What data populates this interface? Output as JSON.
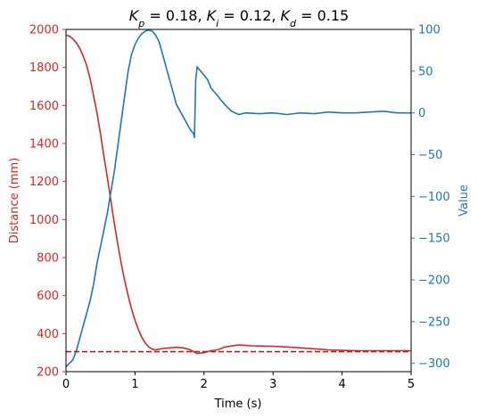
{
  "colors": {
    "distance": "#d62728",
    "value": "#1f77b4",
    "setpoint": "#b22222",
    "axis": "#000000"
  },
  "chart_data": {
    "type": "line",
    "title": {
      "segments": [
        {
          "text": "K",
          "italic": true
        },
        {
          "text": "p",
          "sub": true,
          "italic": true
        },
        {
          "text": " = 0.18, "
        },
        {
          "text": "K",
          "italic": true
        },
        {
          "text": "i",
          "sub": true,
          "italic": true
        },
        {
          "text": " = 0.12, "
        },
        {
          "text": "K",
          "italic": true
        },
        {
          "text": "d",
          "sub": true,
          "italic": true
        },
        {
          "text": " = 0.15"
        }
      ]
    },
    "xlabel": "Time (s)",
    "ylabel_left": "Distance (mm)",
    "ylabel_right": "Value",
    "xlim": [
      0,
      5
    ],
    "ylim_left": [
      200,
      2000
    ],
    "ylim_right": [
      -310,
      100
    ],
    "xticks": [
      "0",
      "1",
      "2",
      "3",
      "4",
      "5"
    ],
    "yticks_left": [
      "200",
      "400",
      "600",
      "800",
      "1000",
      "1200",
      "1400",
      "1600",
      "1800",
      "2000"
    ],
    "yticks_right": [
      "100",
      "50",
      "0",
      "−50",
      "−100",
      "−150",
      "−200",
      "−250",
      "−300"
    ],
    "grid": false,
    "series": [
      {
        "name": "Distance (mm)",
        "axis": "left",
        "style": "solid",
        "x": [
          0.0,
          0.05,
          0.1,
          0.15,
          0.2,
          0.25,
          0.3,
          0.35,
          0.4,
          0.45,
          0.5,
          0.55,
          0.6,
          0.65,
          0.7,
          0.75,
          0.8,
          0.85,
          0.9,
          0.95,
          1.0,
          1.05,
          1.1,
          1.15,
          1.2,
          1.25,
          1.3,
          1.35,
          1.4,
          1.5,
          1.6,
          1.7,
          1.8,
          1.9,
          2.0,
          2.1,
          2.2,
          2.3,
          2.4,
          2.5,
          2.6,
          2.7,
          2.8,
          2.9,
          3.0,
          3.2,
          3.4,
          3.6,
          3.8,
          4.0,
          4.2,
          4.4,
          4.6,
          4.8,
          5.0
        ],
        "values": [
          1970,
          1965,
          1950,
          1930,
          1900,
          1860,
          1810,
          1740,
          1650,
          1560,
          1450,
          1330,
          1220,
          1100,
          980,
          870,
          770,
          680,
          600,
          530,
          470,
          420,
          380,
          350,
          330,
          318,
          315,
          318,
          322,
          325,
          328,
          325,
          315,
          295,
          300,
          310,
          315,
          330,
          335,
          340,
          338,
          336,
          335,
          334,
          333,
          330,
          325,
          320,
          315,
          312,
          310,
          310,
          310,
          310,
          310
        ]
      },
      {
        "name": "Value",
        "axis": "right",
        "style": "solid",
        "x": [
          0.0,
          0.05,
          0.1,
          0.15,
          0.2,
          0.25,
          0.3,
          0.35,
          0.4,
          0.45,
          0.5,
          0.55,
          0.6,
          0.65,
          0.7,
          0.75,
          0.8,
          0.85,
          0.9,
          0.95,
          1.0,
          1.05,
          1.1,
          1.15,
          1.2,
          1.25,
          1.3,
          1.35,
          1.4,
          1.45,
          1.5,
          1.55,
          1.6,
          1.7,
          1.8,
          1.85,
          1.86,
          1.88,
          1.9,
          1.95,
          2.0,
          2.05,
          2.1,
          2.2,
          2.3,
          2.4,
          2.5,
          2.6,
          2.8,
          3.0,
          3.2,
          3.4,
          3.6,
          3.8,
          4.0,
          4.2,
          4.4,
          4.6,
          4.8,
          5.0
        ],
        "values": [
          -304,
          -300,
          -296,
          -285,
          -270,
          -255,
          -240,
          -225,
          -205,
          -180,
          -160,
          -140,
          -120,
          -95,
          -70,
          -40,
          -10,
          20,
          50,
          70,
          82,
          90,
          95,
          98,
          99,
          98,
          93,
          85,
          70,
          55,
          40,
          25,
          10,
          -5,
          -20,
          -25,
          -30,
          40,
          55,
          50,
          45,
          40,
          30,
          20,
          10,
          2,
          -2,
          0,
          -1,
          0,
          -2,
          0,
          -1,
          1,
          0,
          0,
          1,
          2,
          0,
          0
        ]
      },
      {
        "name": "Setpoint",
        "axis": "left",
        "style": "dashed",
        "x": [
          0,
          5
        ],
        "values": [
          305,
          305
        ]
      }
    ]
  }
}
